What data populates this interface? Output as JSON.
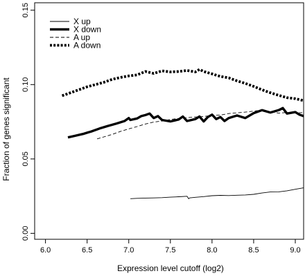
{
  "chart_data": {
    "type": "line",
    "title": "",
    "xlabel": "Expression level cutoff (log2)",
    "ylabel": "Fraction of genes significant",
    "xlim": [
      5.87,
      9.1
    ],
    "ylim": [
      -0.004,
      0.155
    ],
    "xticks": [
      "6.0",
      "6.5",
      "7.0",
      "7.5",
      "8.0",
      "8.5",
      "9.0"
    ],
    "xtick_values": [
      6.0,
      6.5,
      7.0,
      7.5,
      8.0,
      8.5,
      9.0
    ],
    "yticks": [
      "0.00",
      "0.05",
      "0.10",
      "0.15"
    ],
    "ytick_values": [
      0.0,
      0.05,
      0.1,
      0.15
    ],
    "legend_position": "top-left",
    "grid": false,
    "series": [
      {
        "name": "X up",
        "style": "thin-solid",
        "x": [
          7.02,
          7.1,
          7.2,
          7.3,
          7.4,
          7.5,
          7.6,
          7.7,
          7.72,
          7.73,
          7.8,
          7.9,
          8.0,
          8.1,
          8.2,
          8.3,
          8.4,
          8.5,
          8.6,
          8.7,
          8.8,
          8.9,
          9.0,
          9.1
        ],
        "values": [
          0.0233,
          0.0235,
          0.0237,
          0.0238,
          0.024,
          0.0243,
          0.0246,
          0.0249,
          0.0232,
          0.0238,
          0.0242,
          0.0247,
          0.0253,
          0.0255,
          0.0254,
          0.0256,
          0.0258,
          0.0262,
          0.0271,
          0.0278,
          0.0279,
          0.0286,
          0.0296,
          0.0306
        ]
      },
      {
        "name": "X down",
        "style": "thick-solid",
        "x": [
          6.27,
          6.35,
          6.45,
          6.55,
          6.65,
          6.75,
          6.85,
          6.95,
          7.0,
          7.02,
          7.1,
          7.15,
          7.2,
          7.25,
          7.3,
          7.35,
          7.4,
          7.5,
          7.6,
          7.65,
          7.7,
          7.8,
          7.85,
          7.9,
          7.95,
          8.0,
          8.05,
          8.1,
          8.15,
          8.2,
          8.3,
          8.4,
          8.5,
          8.6,
          8.7,
          8.8,
          8.85,
          8.9,
          9.0,
          9.05,
          9.1
        ],
        "values": [
          0.0645,
          0.0655,
          0.0668,
          0.0685,
          0.0705,
          0.0722,
          0.0738,
          0.0755,
          0.0775,
          0.0762,
          0.0772,
          0.0788,
          0.0795,
          0.0805,
          0.0775,
          0.0788,
          0.0762,
          0.0752,
          0.0765,
          0.0785,
          0.0755,
          0.0768,
          0.0785,
          0.0752,
          0.0782,
          0.0798,
          0.0768,
          0.0782,
          0.0755,
          0.0775,
          0.0792,
          0.0775,
          0.0808,
          0.0828,
          0.0812,
          0.0828,
          0.0842,
          0.0805,
          0.0815,
          0.0798,
          0.0788
        ]
      },
      {
        "name": "A up",
        "style": "thin-dashed",
        "x": [
          6.62,
          6.7,
          6.8,
          6.9,
          7.0,
          7.1,
          7.2,
          7.3,
          7.4,
          7.5,
          7.6,
          7.7,
          7.8,
          7.9,
          8.0,
          8.1,
          8.2,
          8.3,
          8.4,
          8.5,
          8.6,
          8.7,
          8.8,
          8.9,
          9.0,
          9.1
        ],
        "values": [
          0.0635,
          0.0648,
          0.0665,
          0.0685,
          0.0702,
          0.0718,
          0.0735,
          0.0748,
          0.0755,
          0.0765,
          0.0772,
          0.0778,
          0.0782,
          0.0785,
          0.0792,
          0.0795,
          0.0805,
          0.081,
          0.0815,
          0.0822,
          0.0828,
          0.0818,
          0.0808,
          0.0812,
          0.0808,
          0.0812
        ]
      },
      {
        "name": "A down",
        "style": "thick-dotted",
        "x": [
          6.2,
          6.3,
          6.4,
          6.5,
          6.6,
          6.7,
          6.8,
          6.9,
          7.0,
          7.1,
          7.2,
          7.3,
          7.4,
          7.5,
          7.6,
          7.7,
          7.8,
          7.85,
          7.9,
          8.0,
          8.1,
          8.2,
          8.3,
          8.4,
          8.5,
          8.6,
          8.7,
          8.8,
          8.9,
          9.0,
          9.1
        ],
        "values": [
          0.0925,
          0.0945,
          0.0965,
          0.0985,
          0.1,
          0.1015,
          0.1035,
          0.1048,
          0.1058,
          0.1065,
          0.1088,
          0.1075,
          0.1092,
          0.1085,
          0.1088,
          0.1095,
          0.1085,
          0.1102,
          0.1088,
          0.1072,
          0.1055,
          0.1045,
          0.1025,
          0.1008,
          0.0988,
          0.0965,
          0.0945,
          0.0928,
          0.0912,
          0.0905,
          0.0892
        ]
      }
    ]
  }
}
